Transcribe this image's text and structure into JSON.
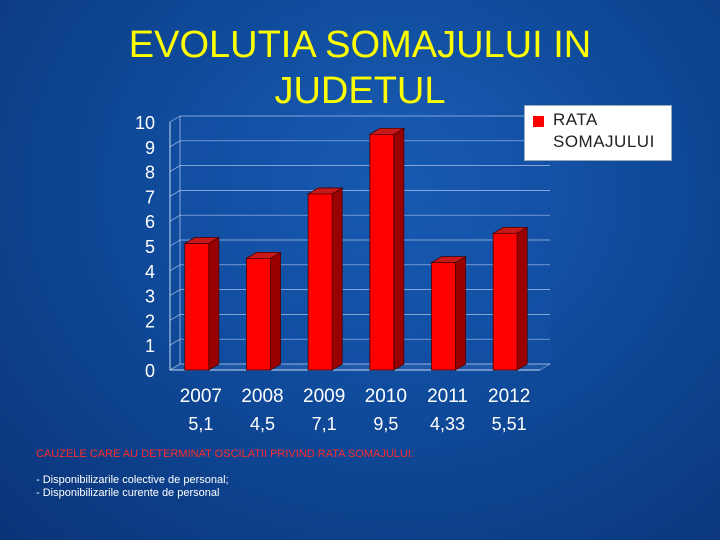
{
  "slide": {
    "title": "EVOLUTIA SOMAJULUI IN JUDETUL",
    "background": "#0f4a9a",
    "title_color": "#ffff00"
  },
  "legend": {
    "label": "RATA SOMAJULUI",
    "color": "#ff0000"
  },
  "notes": {
    "heading": "CAUZELE CARE AU DETERMINAT OSCILATII PRIVIND RATA SOMAJULUI:",
    "items": [
      "- Disponibilizarile colective de personal;",
      "- Disponibilizarile curente de personal"
    ]
  },
  "chart_data": {
    "type": "bar",
    "title": "EVOLUTIA SOMAJULUI IN JUDETUL",
    "categories": [
      "2007",
      "2008",
      "2009",
      "2010",
      "2011",
      "2012"
    ],
    "value_labels": [
      "5,1",
      "4,5",
      "7,1",
      "9,5",
      "4,33",
      "5,51"
    ],
    "series": [
      {
        "name": "RATA SOMAJULUI",
        "values": [
          5.1,
          4.5,
          7.1,
          9.5,
          4.33,
          5.51
        ],
        "color": "#ff0000"
      }
    ],
    "ylim": [
      0,
      10
    ],
    "yticks": [
      "0",
      "1",
      "2",
      "3",
      "4",
      "5",
      "6",
      "7",
      "8",
      "9",
      "10"
    ],
    "grid": true,
    "legend_position": "top-right",
    "bar_style": "3d"
  }
}
